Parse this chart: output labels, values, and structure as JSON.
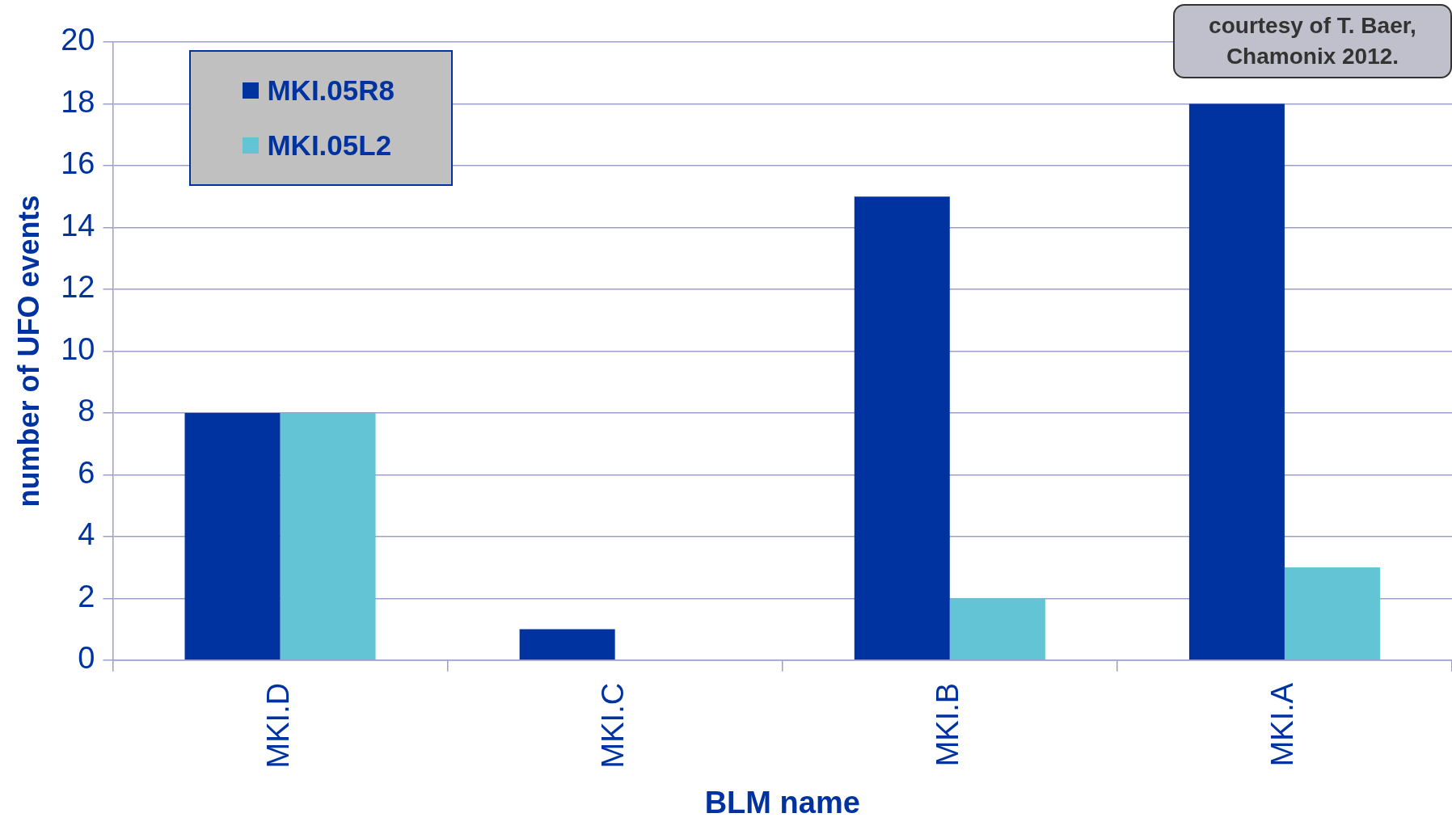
{
  "chart_data": {
    "type": "bar",
    "xlabel": "BLM name",
    "ylabel": "number of UFO events",
    "categories": [
      "MKI.D",
      "MKI.C",
      "MKI.B",
      "MKI.A"
    ],
    "series": [
      {
        "name": "MKI.05R8",
        "color": "#0033a0",
        "values": [
          8,
          1,
          15,
          18
        ]
      },
      {
        "name": "MKI.05L2",
        "color": "#62c4d4",
        "values": [
          8,
          0,
          2,
          3
        ]
      }
    ],
    "ylim": [
      0,
      20
    ],
    "yticks": [
      0,
      2,
      4,
      6,
      8,
      10,
      12,
      14,
      16,
      18,
      20
    ],
    "grid": "y",
    "legend": "top left",
    "annotations": [
      "courtesy of T. Baer, Chamonix 2012."
    ]
  }
}
